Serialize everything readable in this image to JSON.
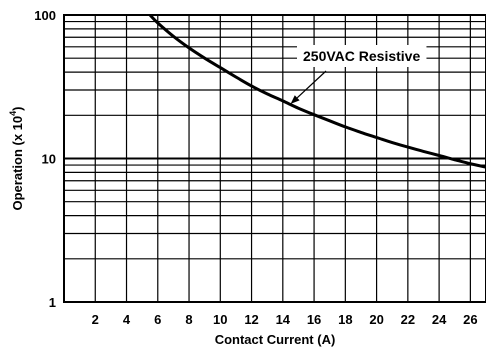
{
  "chart_data": {
    "type": "line",
    "xlabel": "Contact Current (A)",
    "ylabel_main": "Operation (x 10",
    "ylabel_sup": "4",
    "ylabel_close": ")",
    "xlim": [
      0,
      27
    ],
    "ylim": [
      1,
      100
    ],
    "yscale": "log",
    "grid": true,
    "x_ticks": [
      2,
      4,
      6,
      8,
      10,
      12,
      14,
      16,
      18,
      20,
      22,
      24,
      26
    ],
    "x_tick_labels": [
      "2",
      "4",
      "6",
      "8",
      "10",
      "12",
      "14",
      "16",
      "18",
      "20",
      "22",
      "24",
      "26"
    ],
    "y_tick_values": [
      1,
      10,
      100
    ],
    "y_tick_labels": [
      "1",
      "10",
      "100"
    ],
    "series": [
      {
        "name": "250VAC Resistive",
        "x": [
          5.5,
          6,
          7,
          8,
          9,
          10,
          11,
          12,
          13,
          14,
          15,
          16,
          17,
          18,
          19,
          20,
          21,
          22,
          23,
          24,
          25,
          26,
          27
        ],
        "y": [
          100,
          88,
          71,
          59,
          50,
          43,
          37,
          32,
          28.2,
          25.2,
          22.4,
          20.2,
          18.3,
          16.6,
          15.2,
          14,
          12.9,
          12,
          11.2,
          10.5,
          9.8,
          9.2,
          8.7
        ]
      }
    ],
    "annotation": {
      "text": "250VAC Resistive",
      "arrow_target": [
        14.5,
        24
      ]
    }
  }
}
